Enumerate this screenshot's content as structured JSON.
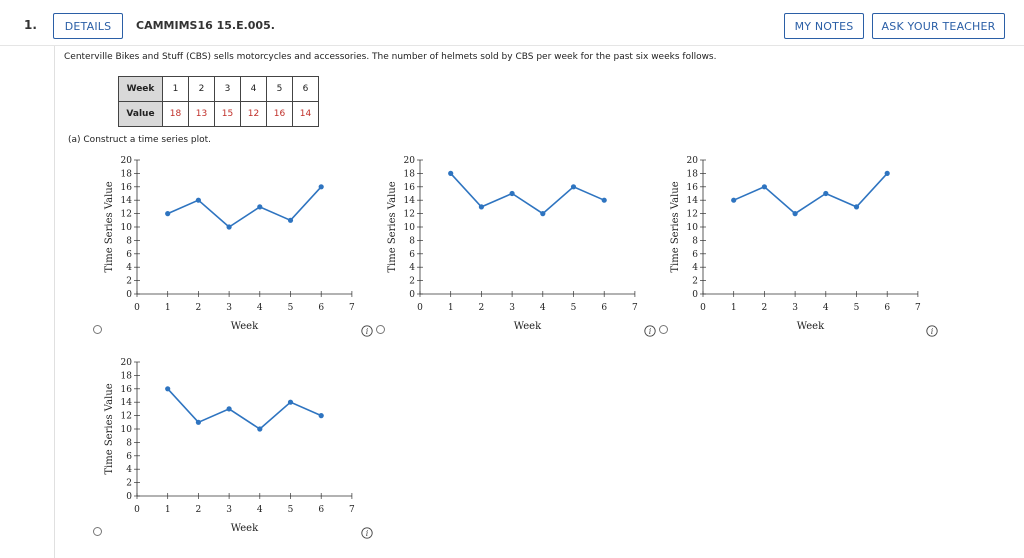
{
  "header": {
    "question_number": "1.",
    "details_label": "DETAILS",
    "problem_code": "CAMMIMS16 15.E.005.",
    "my_notes_label": "MY NOTES",
    "ask_teacher_label": "ASK YOUR TEACHER"
  },
  "problem": {
    "text": "Centerville Bikes and Stuff (CBS) sells motorcycles and accessories. The number of helmets sold by CBS per week for the past six weeks follows.",
    "table": {
      "row_labels": [
        "Week",
        "Value"
      ],
      "weeks": [
        "1",
        "2",
        "3",
        "4",
        "5",
        "6"
      ],
      "values": [
        "18",
        "13",
        "15",
        "12",
        "16",
        "14"
      ]
    },
    "part_a": "(a)   Construct a time series plot."
  },
  "chart_data": [
    {
      "type": "line",
      "xlabel": "Week",
      "ylabel": "Time Series Value",
      "xlim": [
        0,
        7
      ],
      "ylim": [
        0,
        20
      ],
      "x_ticks": [
        "0",
        "1",
        "2",
        "3",
        "4",
        "5",
        "6",
        "7"
      ],
      "y_ticks": [
        "0",
        "2",
        "4",
        "6",
        "8",
        "10",
        "12",
        "14",
        "16",
        "18",
        "20"
      ],
      "x": [
        1,
        2,
        3,
        4,
        5,
        6
      ],
      "values": [
        12,
        14,
        10,
        13,
        11,
        16
      ],
      "color": "#2e74c0"
    },
    {
      "type": "line",
      "xlabel": "Week",
      "ylabel": "Time Series Value",
      "xlim": [
        0,
        7
      ],
      "ylim": [
        0,
        20
      ],
      "x_ticks": [
        "0",
        "1",
        "2",
        "3",
        "4",
        "5",
        "6",
        "7"
      ],
      "y_ticks": [
        "0",
        "2",
        "4",
        "6",
        "8",
        "10",
        "12",
        "14",
        "16",
        "18",
        "20"
      ],
      "x": [
        1,
        2,
        3,
        4,
        5,
        6
      ],
      "values": [
        18,
        13,
        15,
        12,
        16,
        14
      ],
      "color": "#2e74c0"
    },
    {
      "type": "line",
      "xlabel": "Week",
      "ylabel": "Time Series Value",
      "xlim": [
        0,
        7
      ],
      "ylim": [
        0,
        20
      ],
      "x_ticks": [
        "0",
        "1",
        "2",
        "3",
        "4",
        "5",
        "6",
        "7"
      ],
      "y_ticks": [
        "0",
        "2",
        "4",
        "6",
        "8",
        "10",
        "12",
        "14",
        "16",
        "18",
        "20"
      ],
      "x": [
        1,
        2,
        3,
        4,
        5,
        6
      ],
      "values": [
        14,
        16,
        12,
        15,
        13,
        18
      ],
      "color": "#2e74c0"
    },
    {
      "type": "line",
      "xlabel": "Week",
      "ylabel": "Time Series Value",
      "xlim": [
        0,
        7
      ],
      "ylim": [
        0,
        20
      ],
      "x_ticks": [
        "0",
        "1",
        "2",
        "3",
        "4",
        "5",
        "6",
        "7"
      ],
      "y_ticks": [
        "0",
        "2",
        "4",
        "6",
        "8",
        "10",
        "12",
        "14",
        "16",
        "18",
        "20"
      ],
      "x": [
        1,
        2,
        3,
        4,
        5,
        6
      ],
      "values": [
        16,
        11,
        13,
        10,
        14,
        12
      ],
      "color": "#2e74c0"
    }
  ],
  "icons": {
    "info": "info-icon",
    "radio": "radio-button"
  },
  "colors": {
    "accent": "#2b5fa6",
    "value_text": "#c0302a",
    "series": "#2e74c0"
  }
}
